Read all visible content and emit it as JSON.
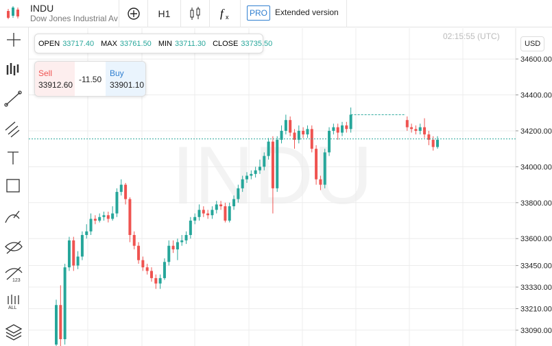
{
  "header": {
    "symbol": "INDU",
    "name": "Dow Jones Industrial Ave",
    "timeframe": "H1",
    "pro": "PRO",
    "extended": "Extended version"
  },
  "ohlc": {
    "open_label": "OPEN",
    "open": "33717.40",
    "max_label": "MAX",
    "max": "33761.50",
    "min_label": "MIN",
    "min": "33711.30",
    "close_label": "CLOSE",
    "close": "33735.50"
  },
  "trade": {
    "sell_label": "Sell",
    "sell": "33912.60",
    "spread": "-11.50",
    "buy_label": "Buy",
    "buy": "33901.10"
  },
  "time": "02:15:55 (UTC)",
  "currency": "USD",
  "watermark": "INDU",
  "chart_data": {
    "type": "candlestick",
    "open": [
      33010,
      33230,
      33040,
      33440,
      33590,
      33450,
      33500,
      33620,
      33640,
      33710,
      33700,
      33720,
      33730,
      33710,
      33740,
      33860,
      33900,
      33820,
      33620,
      33560,
      33480,
      33440,
      33420,
      33380,
      33350,
      33380,
      33470,
      33560,
      33540,
      33580,
      33590,
      33620,
      33700,
      33720,
      33760,
      33740,
      33730,
      33760,
      33790,
      33780,
      33700,
      33780,
      33820,
      33880,
      33930,
      33950,
      33960,
      33980,
      34000,
      34060,
      34140,
      33880,
      34150,
      34200,
      34260,
      34190,
      34150,
      34200,
      34180,
      34210,
      34100,
      33930,
      33900,
      34080,
      34200,
      34220,
      34190,
      34230,
      34210,
      null,
      null,
      null,
      null,
      null,
      null,
      null,
      null,
      null,
      null,
      null,
      null,
      34260,
      34220,
      34210,
      34200,
      34220,
      34180,
      34150,
      34110
    ],
    "high": [
      33260,
      33340,
      33460,
      33610,
      33610,
      33530,
      33640,
      33680,
      33740,
      33730,
      33740,
      33750,
      33750,
      33780,
      33880,
      33930,
      33910,
      33830,
      33640,
      33580,
      33500,
      33460,
      33440,
      33400,
      33400,
      33490,
      33590,
      33590,
      33600,
      33620,
      33640,
      33720,
      33740,
      33790,
      33780,
      33760,
      33780,
      33810,
      33810,
      33800,
      33800,
      33840,
      33900,
      33950,
      33970,
      33980,
      34000,
      34040,
      34080,
      34160,
      34170,
      34170,
      34230,
      34290,
      34280,
      34210,
      34230,
      34220,
      34230,
      34230,
      34120,
      33950,
      34100,
      34220,
      34240,
      34240,
      34250,
      34250,
      34330,
      null,
      null,
      null,
      null,
      null,
      null,
      null,
      null,
      null,
      null,
      null,
      null,
      34280,
      34240,
      34230,
      34240,
      34270,
      34200,
      34170,
      34170
    ],
    "low": [
      32990,
      33000,
      33010,
      33420,
      33420,
      33430,
      33480,
      33600,
      33620,
      33680,
      33690,
      33700,
      33690,
      33700,
      33720,
      33840,
      33790,
      33580,
      33540,
      33460,
      33420,
      33400,
      33360,
      33320,
      33320,
      33370,
      33450,
      33520,
      33480,
      33560,
      33570,
      33600,
      33680,
      33700,
      33720,
      33710,
      33710,
      33740,
      33760,
      33690,
      33690,
      33760,
      33800,
      33860,
      33910,
      33930,
      33940,
      33960,
      33980,
      34040,
      33740,
      33860,
      34130,
      34180,
      34170,
      34100,
      34130,
      34160,
      34160,
      34080,
      33900,
      33870,
      33880,
      34060,
      34180,
      34150,
      34170,
      34190,
      34190,
      null,
      null,
      null,
      null,
      null,
      null,
      null,
      null,
      null,
      null,
      null,
      null,
      34200,
      34190,
      34180,
      34180,
      34160,
      34120,
      34090,
      34100
    ],
    "close": [
      33230,
      33040,
      33440,
      33590,
      33450,
      33500,
      33620,
      33640,
      33710,
      33700,
      33720,
      33730,
      33710,
      33740,
      33860,
      33900,
      33820,
      33620,
      33560,
      33480,
      33440,
      33420,
      33380,
      33350,
      33380,
      33470,
      33560,
      33540,
      33580,
      33590,
      33620,
      33700,
      33720,
      33760,
      33740,
      33730,
      33760,
      33790,
      33780,
      33700,
      33780,
      33820,
      33880,
      33930,
      33950,
      33960,
      33980,
      34000,
      34060,
      34140,
      33880,
      34150,
      34200,
      34260,
      34190,
      34150,
      34200,
      34180,
      34210,
      34100,
      33930,
      33900,
      34080,
      34200,
      34220,
      34190,
      34230,
      34210,
      34290,
      null,
      null,
      null,
      null,
      null,
      null,
      null,
      null,
      null,
      null,
      null,
      null,
      34220,
      34210,
      34200,
      34220,
      34180,
      34150,
      34110,
      34150
    ],
    "up_color": "#26a69a",
    "down_color": "#ef5350",
    "last_price": 34155,
    "prev_close": 34290,
    "ylim": [
      33002,
      34772
    ],
    "yticks": [
      {
        "value": 34600,
        "label": "34600.00"
      },
      {
        "value": 34400,
        "label": "34400.00"
      },
      {
        "value": 34200,
        "label": "34200.00"
      },
      {
        "value": 34000,
        "label": "34000.00"
      },
      {
        "value": 33800,
        "label": "33800.00"
      },
      {
        "value": 33600,
        "label": "33600.00"
      },
      {
        "value": 33450,
        "label": "33450.00"
      },
      {
        "value": 33330,
        "label": "33330.00"
      },
      {
        "value": 33210,
        "label": "33210.00"
      },
      {
        "value": 33090,
        "label": "33090.00"
      }
    ],
    "grid": true
  }
}
